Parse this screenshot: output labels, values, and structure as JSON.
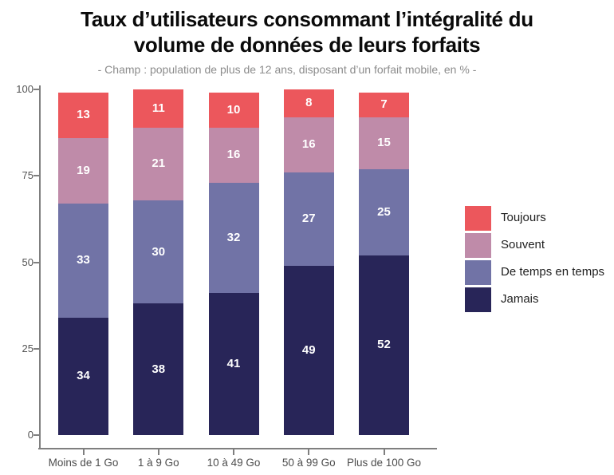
{
  "title_line1": "Taux d’utilisateurs consommant l’intégralité du",
  "title_line2": "volume de données de leurs forfaits",
  "subtitle": "- Champ : population de plus de 12 ans, disposant d’un forfait mobile, en % -",
  "chart_data": {
    "type": "bar",
    "stacked": true,
    "title": "Taux d’utilisateurs consommant l’intégralité du volume de données de leurs forfaits",
    "subtitle": "- Champ : population de plus de 12 ans, disposant d’un forfait mobile, en % -",
    "categories": [
      "Moins de 1 Go",
      "1 à 9 Go",
      "10 à 49 Go",
      "50 à 99 Go",
      "Plus de 100 Go"
    ],
    "series": [
      {
        "name": "Jamais",
        "color": "#282558",
        "values": [
          34,
          38,
          41,
          49,
          52
        ]
      },
      {
        "name": "De temps en temps",
        "color": "#7173A6",
        "values": [
          33,
          30,
          32,
          27,
          25
        ]
      },
      {
        "name": "Souvent",
        "color": "#BF8BA9",
        "values": [
          19,
          21,
          16,
          16,
          15
        ]
      },
      {
        "name": "Toujours",
        "color": "#EC575C",
        "values": [
          13,
          11,
          10,
          8,
          7
        ]
      }
    ],
    "legend": [
      "Toujours",
      "Souvent",
      "De temps en temps",
      "Jamais"
    ],
    "legend_position": "right",
    "value_labels": true,
    "xlabel": "",
    "ylabel": "",
    "y_ticks": [
      0,
      25,
      50,
      75,
      100
    ],
    "ylim": [
      0,
      100
    ],
    "grid": false,
    "unit": "%"
  }
}
